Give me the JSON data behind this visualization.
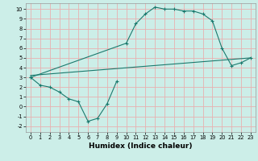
{
  "xlabel": "Humidex (Indice chaleur)",
  "bg_color": "#cceee8",
  "grid_color": "#e8b0b0",
  "line_color": "#1a7a6e",
  "xlim": [
    -0.5,
    23.5
  ],
  "ylim": [
    -2.6,
    10.6
  ],
  "xticks": [
    0,
    1,
    2,
    3,
    4,
    5,
    6,
    7,
    8,
    9,
    10,
    11,
    12,
    13,
    14,
    15,
    16,
    17,
    18,
    19,
    20,
    21,
    22,
    23
  ],
  "yticks": [
    -2,
    -1,
    0,
    1,
    2,
    3,
    4,
    5,
    6,
    7,
    8,
    9,
    10
  ],
  "line1_x": [
    0,
    1,
    2,
    3,
    4,
    5,
    6,
    7,
    8,
    9
  ],
  "line1_y": [
    3.0,
    2.2,
    2.0,
    1.5,
    0.8,
    0.5,
    -1.5,
    -1.2,
    0.3,
    2.6
  ],
  "line2_x": [
    0,
    10,
    11,
    12,
    13,
    14,
    15,
    16,
    17,
    18,
    19,
    20,
    21,
    22,
    23
  ],
  "line2_y": [
    3.0,
    6.5,
    8.5,
    9.5,
    10.2,
    10.0,
    10.0,
    9.8,
    9.8,
    9.5,
    8.8,
    6.0,
    4.2,
    4.5,
    5.0
  ],
  "line3_x": [
    0,
    23
  ],
  "line3_y": [
    3.2,
    5.0
  ],
  "xlabel_fontsize": 6.5,
  "tick_fontsize": 4.8
}
